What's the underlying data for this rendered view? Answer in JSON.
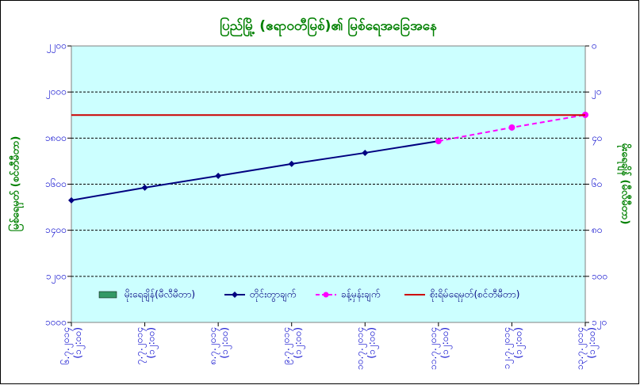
{
  "chart_data": {
    "type": "line",
    "title": "ပြည်မြို့ (ဧရာဝတီမြစ်)၏ မြစ်ရေအခြေအနေ",
    "y_label": "မြစ်ရေမှတ် (စင်တီမီတာ)",
    "y2_label": "မိုးရေချိန် (မီလီမီတာ)",
    "categories": [
      [
        "၆.၇.၂၀၁၄",
        "(၁၂:၀၀)"
      ],
      [
        "၇.၇.၂၀၁၄",
        "(၁၂:၀၀)"
      ],
      [
        "၈.၇.၂၀၁၄",
        "(၁၂:၀၀)"
      ],
      [
        "၉.၇.၂၀၁၄",
        "(၁၂:၀၀)"
      ],
      [
        "၁၀.၇.၂၀၁၄",
        "(၁၂:၀၀)"
      ],
      [
        "၁၁.၇.၂၀၁၄",
        "(၁၂:၀၀)"
      ],
      [
        "၁၂.၇.၂၀၁၄",
        "(၁၂:၀၀)"
      ],
      [
        "၁၃.၇.၂၀၁၄",
        "(၁၂:၀၀)"
      ]
    ],
    "series": [
      {
        "name": "မိုးရေချိန်(မီလီမီတာ)",
        "kind": "bar",
        "axis": "y2",
        "color": "#339966",
        "values": [
          0,
          0,
          0,
          0,
          0,
          0,
          0,
          0
        ]
      },
      {
        "name": "တိုင်းတွာချက်",
        "kind": "line",
        "color": "#000080",
        "marker": "diamond",
        "values": [
          1530,
          1585,
          1636,
          1688,
          1736,
          1787,
          null,
          null
        ]
      },
      {
        "name": "ခန့်မှန်းချက်",
        "kind": "line",
        "color": "#ff00ff",
        "dashed": true,
        "marker": "circle",
        "values": [
          null,
          null,
          null,
          null,
          null,
          1787,
          1846,
          1901
        ]
      },
      {
        "name": "စိုးရိမ်ရေမှတ်(စင်တီမီတာ)",
        "kind": "line",
        "color": "#cc0000",
        "values": [
          1900,
          1900,
          1900,
          1900,
          1900,
          1900,
          1900,
          1900
        ]
      }
    ],
    "ylim": [
      1000,
      2200
    ],
    "yticks": [
      {
        "value": 1000,
        "label": "၁၀၀၀"
      },
      {
        "value": 1200,
        "label": "၁၂၀၀"
      },
      {
        "value": 1400,
        "label": "၁၄၀၀"
      },
      {
        "value": 1600,
        "label": "၁၆၀၀"
      },
      {
        "value": 1800,
        "label": "၁၈၀၀"
      },
      {
        "value": 2000,
        "label": "၂၀၀၀"
      },
      {
        "value": 2200,
        "label": "၂၂၀၀"
      }
    ],
    "y2lim": [
      0,
      120
    ],
    "y2_inverted": true,
    "y2ticks": [
      {
        "value": 0,
        "label": "၀"
      },
      {
        "value": 20,
        "label": "၂၀"
      },
      {
        "value": 40,
        "label": "၄၀"
      },
      {
        "value": 60,
        "label": "၆၀"
      },
      {
        "value": 80,
        "label": "၈၀"
      },
      {
        "value": 100,
        "label": "၁၀၀"
      },
      {
        "value": 120,
        "label": "၁၂၀"
      }
    ],
    "grid": true,
    "legend": "bottom"
  }
}
